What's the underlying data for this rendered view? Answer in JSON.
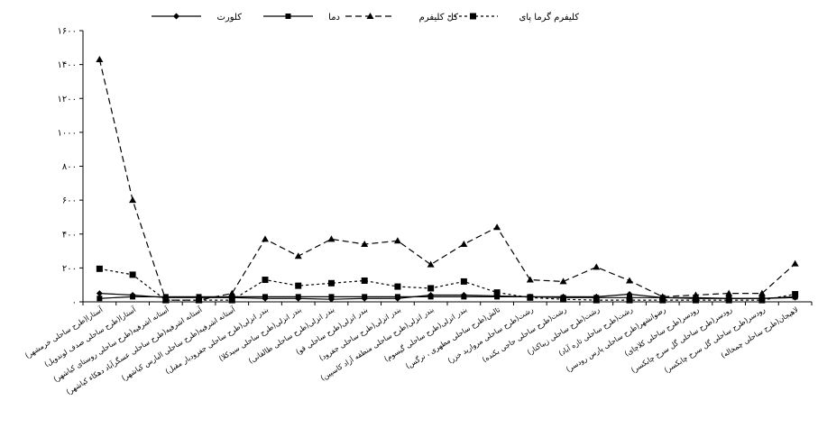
{
  "chart_data": {
    "type": "line",
    "title": "",
    "xlabel": "",
    "ylabel": "",
    "ylim": [
      0,
      1600
    ],
    "yticks": [
      "۰",
      "۲۰۰",
      "۴۰۰",
      "۶۰۰",
      "۸۰۰",
      "۱۰۰۰",
      "۱۲۰۰",
      "۱۴۰۰",
      "۱۶۰۰"
    ],
    "grid": false,
    "legend_position": "top",
    "categories": [
      "آستارا(طرح ساحلی خرمشهر)",
      "آستارا(طرح ساحلی صدف لوندویل)",
      "آستانه اشرفیه(طرح ساحلی روستای کیاشهر)",
      "آستانه اشرفیه(طرح ساحلی عسگرآباد دهکاء کیاشهر)",
      "آستانه اشرفیه(طرح ساحلی البارس کیاشهر)",
      "بندر انزلی(طرح ساحلی جفرودبار مقبل)",
      "بندر انزلی(طرح ساحلی سیدکلا)",
      "بندر انزلی(طرح ساحلی طالقانی)",
      "بندر انزلی(طرح ساحلی قو)",
      "بندر انزلی(طرح ساحلی جفرود)",
      "بندر انزلی(طرح ساحلی منطقه آزاد کاسپین)",
      "بندر انزلی(طرح ساحلی گیسوم)",
      "تالش(طرح ساحلی مطهری ، نرگس)",
      "رشت(طرح ساحلی مروارید خزر)",
      "رشت(طرح ساحلی حاجی بکنده)",
      "رشت(طرح ساحلی زیباکنار)",
      "رشت(طرح ساحلی تازه آباد)",
      "رضوانشهر(طرح ساحلی پارس رودسر)",
      "رودسر(طرح ساحلی کلاچای)",
      "رودسر(طرح ساحلی گل سرخ چابکسر)",
      "رودسر(طرح ساحلی گل سرخ چابکسر)",
      "لاهیجان(طرح ساحلی چمخاله)"
    ],
    "series": [
      {
        "name": "کلورت",
        "color": "#000000",
        "dash": "",
        "marker": "diamond",
        "values": [
          50,
          40,
          25,
          25,
          25,
          20,
          20,
          15,
          20,
          20,
          40,
          40,
          35,
          30,
          30,
          30,
          45,
          25,
          25,
          20,
          20,
          25
        ]
      },
      {
        "name": "دما",
        "color": "#000000",
        "dash": "",
        "marker": "square",
        "values": [
          20,
          30,
          30,
          30,
          30,
          30,
          30,
          30,
          30,
          30,
          30,
          30,
          30,
          30,
          25,
          25,
          25,
          25,
          20,
          20,
          20,
          30
        ]
      },
      {
        "name": "کل کلیفرم",
        "color": "#000000",
        "dash": "7,4",
        "marker": "triangle",
        "values": [
          1430,
          600,
          10,
          10,
          50,
          370,
          270,
          370,
          340,
          360,
          220,
          340,
          440,
          130,
          120,
          205,
          125,
          30,
          40,
          50,
          50,
          225
        ]
      },
      {
        "name": "کلیفرم گرما پای",
        "color": "#000000",
        "dash": "3,3",
        "marker": "square-large",
        "values": [
          195,
          160,
          10,
          10,
          10,
          130,
          95,
          110,
          125,
          90,
          80,
          120,
          55,
          25,
          15,
          10,
          10,
          10,
          10,
          10,
          10,
          45
        ]
      }
    ]
  }
}
